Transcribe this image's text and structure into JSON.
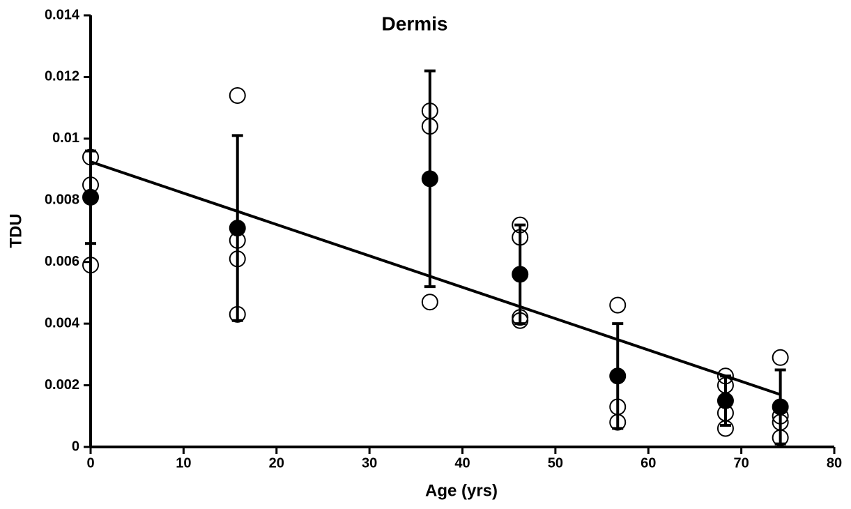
{
  "chart_data": {
    "type": "scatter",
    "title": "Dermis",
    "xlabel": "Age (yrs)",
    "ylabel": "TDU",
    "xlim": [
      0,
      80
    ],
    "xticks": [
      0,
      10,
      20,
      30,
      40,
      50,
      60,
      70,
      80
    ],
    "ylim": [
      0,
      0.014
    ],
    "yticks": [
      0,
      0.002,
      0.004,
      0.006,
      0.008,
      0.01,
      0.012,
      0.014
    ],
    "color": "#000000",
    "series": [
      {
        "marker": "open",
        "x": [
          0,
          0,
          0,
          15.8,
          15.8,
          15.8,
          15.8,
          36.5,
          36.5,
          36.5,
          46.2,
          46.2,
          46.2,
          46.2,
          56.7,
          56.7,
          56.7,
          68.3,
          68.3,
          68.3,
          68.3,
          74.2,
          74.2,
          74.2,
          74.2
        ],
        "values": [
          0.0094,
          0.0085,
          0.0059,
          0.0114,
          0.0067,
          0.0061,
          0.0043,
          0.0109,
          0.0104,
          0.0047,
          0.0072,
          0.0068,
          0.0042,
          0.0041,
          0.0046,
          0.0013,
          0.0008,
          0.0023,
          0.002,
          0.0011,
          0.0006,
          0.0029,
          0.001,
          0.0008,
          0.0003
        ]
      },
      {
        "marker": "filled",
        "x": [
          0,
          15.8,
          36.5,
          46.2,
          56.7,
          68.3,
          74.2
        ],
        "values": [
          0.0081,
          0.0071,
          0.0087,
          0.0056,
          0.0023,
          0.0015,
          0.0013
        ],
        "errors": [
          0.0015,
          0.003,
          0.0035,
          0.0016,
          0.0017,
          0.0008,
          0.0012
        ]
      },
      {
        "marker": "line",
        "x": [
          0,
          74.2
        ],
        "values": [
          0.00925,
          0.0017
        ]
      }
    ]
  }
}
